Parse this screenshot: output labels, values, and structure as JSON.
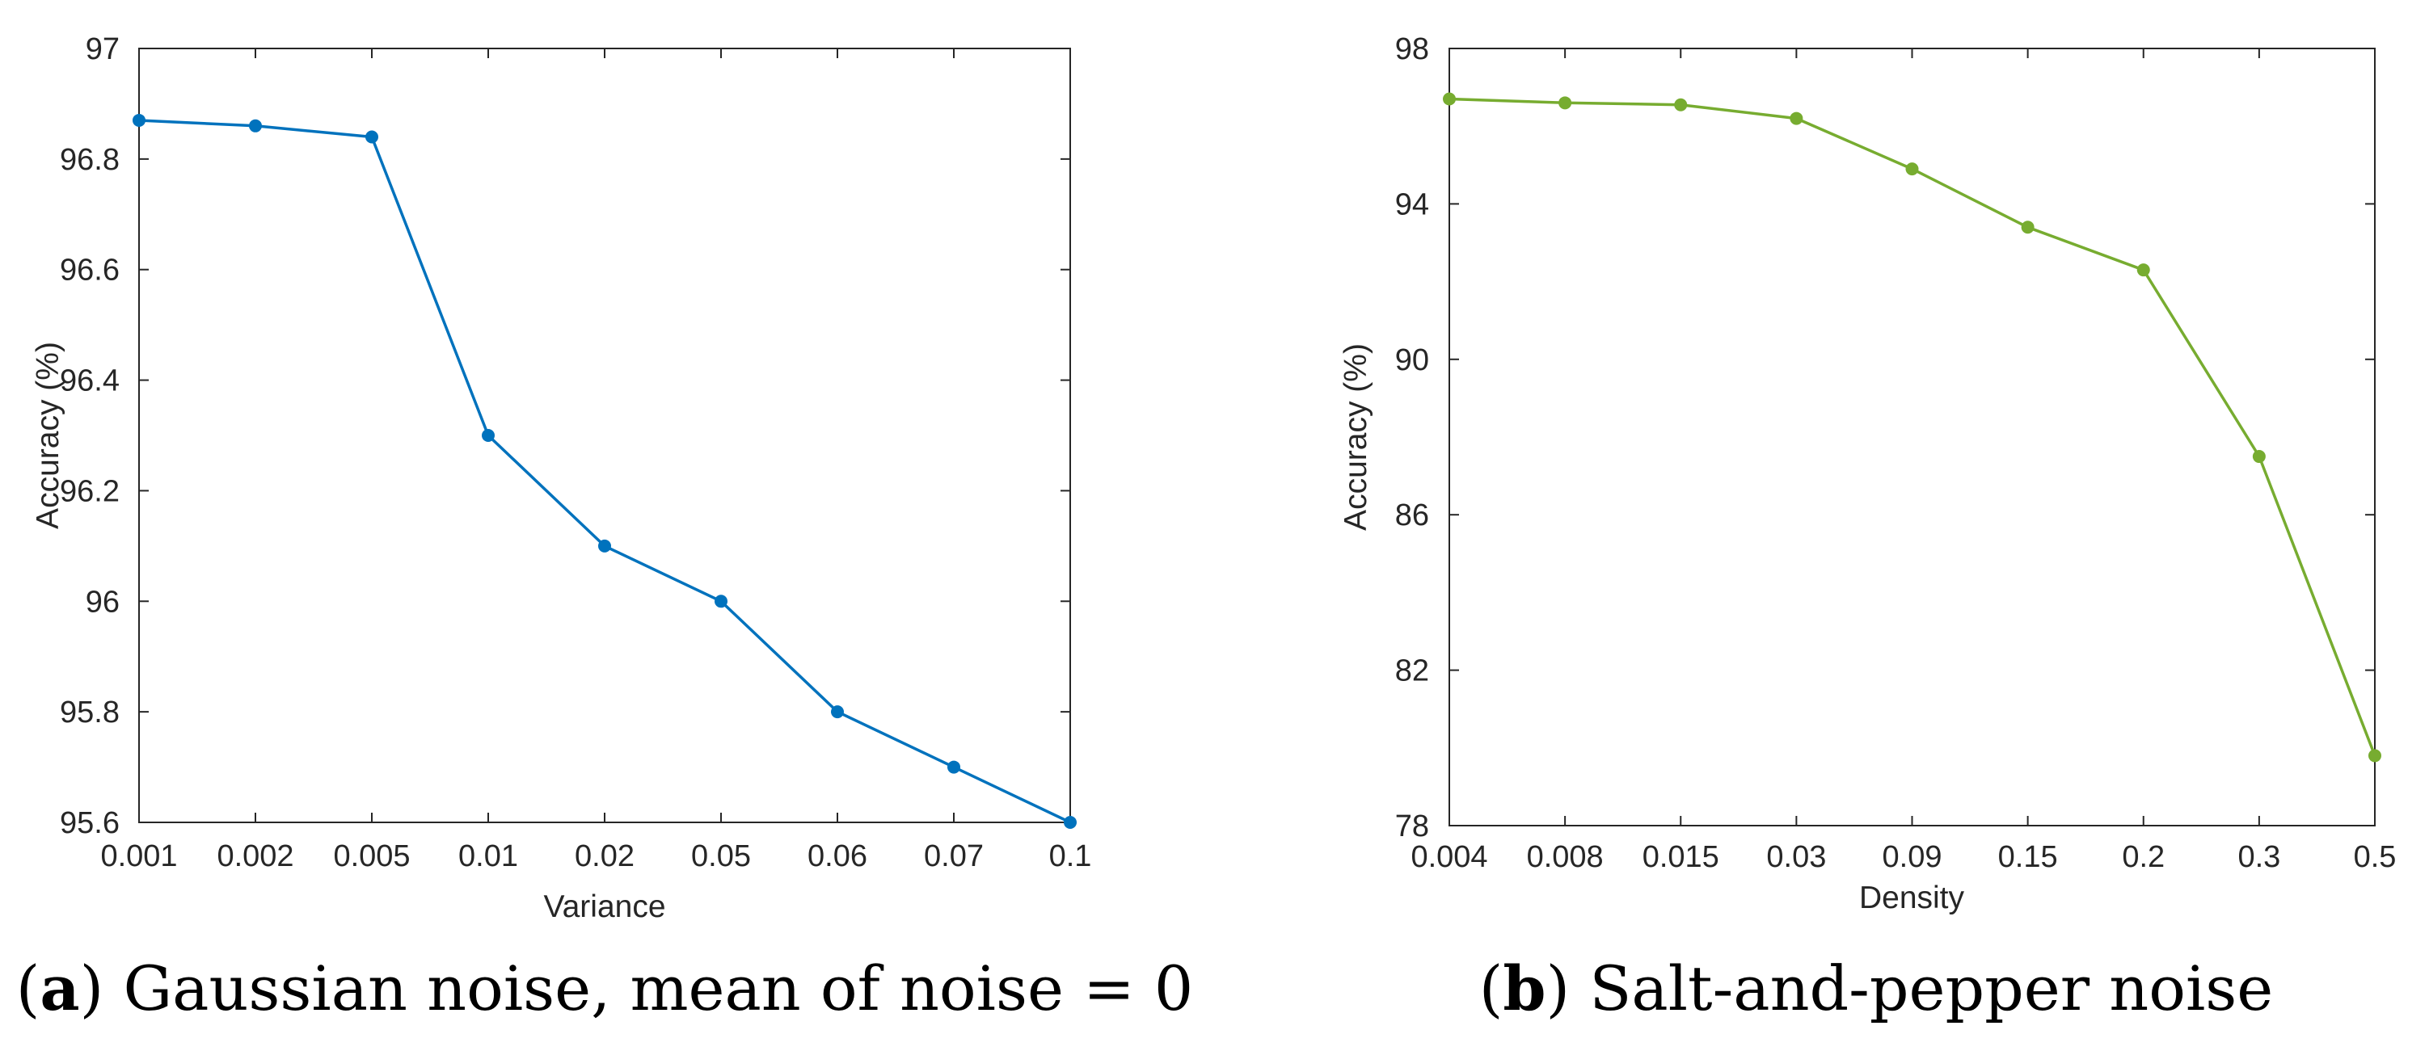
{
  "chart_data": [
    {
      "type": "line",
      "id": "a",
      "caption": {
        "label": "a",
        "text": "Gaussian noise, mean of noise = 0"
      },
      "xlabel": "Variance",
      "ylabel": "Accuracy (%)",
      "categories": [
        "0.001",
        "0.002",
        "0.005",
        "0.01",
        "0.02",
        "0.05",
        "0.06",
        "0.07",
        "0.1"
      ],
      "series": [
        {
          "name": "Accuracy",
          "color": "#0072BD",
          "values": [
            96.87,
            96.86,
            96.84,
            96.3,
            96.1,
            96.0,
            95.8,
            95.7,
            95.6
          ]
        }
      ],
      "ylim": [
        95.6,
        97.0
      ],
      "yticks": [
        95.6,
        95.8,
        96.0,
        96.2,
        96.4,
        96.6,
        96.8,
        97.0
      ],
      "ytick_labels": [
        "95.6",
        "95.8",
        "96",
        "96.2",
        "96.4",
        "96.6",
        "96.8",
        "97"
      ],
      "grid": false
    },
    {
      "type": "line",
      "id": "b",
      "caption": {
        "label": "b",
        "text": "Salt-and-pepper noise"
      },
      "xlabel": "Density",
      "ylabel": "Accuracy (%)",
      "categories": [
        "0.004",
        "0.008",
        "0.015",
        "0.03",
        "0.09",
        "0.15",
        "0.2",
        "0.3",
        "0.5"
      ],
      "series": [
        {
          "name": "Accuracy",
          "color": "#77AC30",
          "values": [
            96.7,
            96.6,
            96.55,
            96.2,
            94.9,
            93.4,
            92.3,
            87.5,
            79.8
          ]
        }
      ],
      "ylim": [
        78,
        98
      ],
      "yticks": [
        78,
        82,
        86,
        90,
        94,
        98
      ],
      "ytick_labels": [
        "78",
        "82",
        "86",
        "90",
        "94",
        "98"
      ],
      "grid": false
    }
  ]
}
